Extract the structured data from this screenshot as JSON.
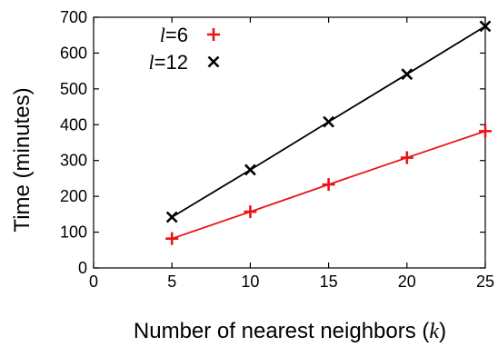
{
  "chart_data": {
    "type": "line",
    "xlabel": "Number of nearest neighbors",
    "xlabel_var": "k",
    "ylabel": "Time (minutes)",
    "xlim": [
      0,
      25
    ],
    "ylim": [
      0,
      700
    ],
    "xticks": [
      0,
      5,
      10,
      15,
      20,
      25
    ],
    "yticks": [
      0,
      100,
      200,
      300,
      400,
      500,
      600,
      700
    ],
    "legend_position": "top-left",
    "grid": false,
    "x": [
      5,
      10,
      15,
      20,
      25
    ],
    "series": [
      {
        "name": "l=6",
        "name_var": "l",
        "name_value": "=6",
        "color": "#e8141b",
        "marker": "plus",
        "values": [
          82,
          157,
          233,
          308,
          382
        ]
      },
      {
        "name": "l=12",
        "name_var": "l",
        "name_value": "=12",
        "color": "#000000",
        "marker": "cross",
        "values": [
          142,
          274,
          408,
          541,
          675
        ]
      }
    ]
  }
}
